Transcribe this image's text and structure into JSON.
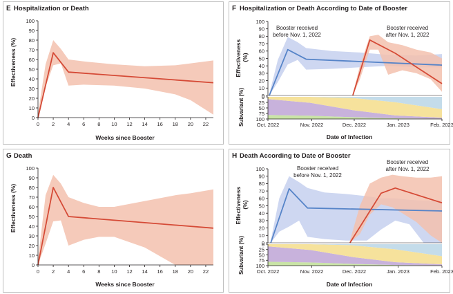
{
  "colors": {
    "frame": "#bfbfbf",
    "axis": "#231f20",
    "red_line": "#d54a36",
    "red_band": "#f3c1ae",
    "blue_line": "#5684c8",
    "blue_band": "#c5d0ee",
    "sub_purple": "#c8b2dc",
    "sub_green": "#c9e4a6",
    "sub_yellow": "#f6e29c",
    "sub_blue": "#c4dcea"
  },
  "chart_data": [
    {
      "panel": "E",
      "title": "Hospitalization or Death",
      "type": "line",
      "xlabel": "Weeks since Booster",
      "ylabel": "Effectiveness (%)",
      "xlim": [
        0,
        23
      ],
      "ylim": [
        0,
        100
      ],
      "xticks": [
        "0",
        "2",
        "4",
        "6",
        "8",
        "10",
        "12",
        "14",
        "16",
        "18",
        "20",
        "22"
      ],
      "yticks": [
        "0",
        "10",
        "20",
        "30",
        "40",
        "50",
        "60",
        "70",
        "80",
        "90",
        "100"
      ],
      "series": [
        {
          "color": "red",
          "x": [
            0,
            2,
            4,
            23
          ],
          "y": [
            0,
            67,
            47,
            36
          ],
          "band": {
            "x": [
              0,
              1,
              2,
              3,
              4,
              6,
              10,
              14,
              18,
              20,
              23
            ],
            "upper": [
              4,
              55,
              80,
              71,
              60,
              58,
              55,
              53,
              54,
              56,
              59
            ],
            "lower": [
              0,
              32,
              54,
              56,
              33,
              34,
              33,
              30,
              24,
              18,
              3
            ]
          }
        }
      ]
    },
    {
      "panel": "F",
      "title": "Hospitalization or Death According to Date of Booster",
      "type": "line",
      "xlabel": "Date of Infection",
      "ylabel": "Effectiveness (%)",
      "subvariant_label": "Subvariant (%)",
      "xlim": [
        0,
        123
      ],
      "ylim": [
        0,
        100
      ],
      "xticks": [
        "Oct. 2022",
        "Nov. 2022",
        "Dec. 2022",
        "Jan. 2023",
        "Feb. 2023"
      ],
      "xtick_days": [
        0,
        31,
        61,
        92,
        123
      ],
      "yticks": [
        "0",
        "10",
        "20",
        "30",
        "40",
        "50",
        "60",
        "70",
        "80",
        "90",
        "100"
      ],
      "sub_yticks": [
        "0",
        "25",
        "50",
        "75",
        "100"
      ],
      "annotations": [
        {
          "text": [
            "Booster received",
            "before Nov. 1, 2022"
          ],
          "series": "blue"
        },
        {
          "text": [
            "Booster received",
            "after Nov. 1, 2022"
          ],
          "series": "red"
        }
      ],
      "series": [
        {
          "color": "blue",
          "x": [
            1,
            14,
            27,
            123
          ],
          "y": [
            0,
            62,
            49,
            41
          ],
          "band": {
            "x": [
              1,
              7,
              14,
              21,
              27,
              45,
              65,
              85,
              105,
              123
            ],
            "upper": [
              2,
              48,
              79,
              72,
              64,
              60,
              58,
              55,
              54,
              56
            ],
            "lower": [
              0,
              18,
              42,
              48,
              35,
              36,
              38,
              40,
              38,
              38
            ]
          }
        },
        {
          "color": "red",
          "x": [
            60,
            72,
            90,
            123
          ],
          "y": [
            0,
            75,
            57,
            16
          ],
          "band": {
            "x": [
              60,
              65,
              72,
              78,
              85,
              95,
              105,
              115,
              123
            ],
            "upper": [
              2,
              40,
              80,
              82,
              72,
              68,
              62,
              58,
              50
            ],
            "lower": [
              0,
              22,
              62,
              62,
              28,
              34,
              30,
              22,
              5
            ]
          }
        }
      ],
      "subvariants": {
        "x": [
          0,
          30,
          60,
          90,
          123
        ],
        "layers": [
          {
            "color": "green",
            "values": [
              18,
              15,
              8,
              3,
              1
            ]
          },
          {
            "color": "purple",
            "values": [
              72,
              58,
              32,
              13,
              5
            ]
          },
          {
            "color": "yellow",
            "values": [
              10,
              27,
              55,
              60,
              38
            ]
          },
          {
            "color": "blue",
            "values": [
              0,
              0,
              5,
              24,
              56
            ]
          }
        ]
      }
    },
    {
      "panel": "G",
      "title": "Death",
      "type": "line",
      "xlabel": "Weeks since Booster",
      "ylabel": "Effectiveness (%)",
      "xlim": [
        0,
        23
      ],
      "ylim": [
        0,
        100
      ],
      "xticks": [
        "0",
        "2",
        "4",
        "6",
        "8",
        "10",
        "12",
        "14",
        "16",
        "18",
        "20",
        "22"
      ],
      "yticks": [
        "0",
        "10",
        "20",
        "30",
        "40",
        "50",
        "60",
        "70",
        "80",
        "90",
        "100"
      ],
      "series": [
        {
          "color": "red",
          "x": [
            0,
            2,
            4,
            23
          ],
          "y": [
            0,
            80,
            50,
            38
          ],
          "band": {
            "x": [
              0,
              1,
              2,
              3,
              4,
              6,
              8,
              10,
              14,
              18,
              20,
              23
            ],
            "upper": [
              5,
              72,
              93,
              84,
              70,
              64,
              60,
              60,
              66,
              72,
              74,
              78
            ],
            "lower": [
              0,
              22,
              45,
              46,
              20,
              26,
              29,
              29,
              18,
              0,
              0,
              0
            ]
          }
        }
      ]
    },
    {
      "panel": "H",
      "title": "Death According to Date of Booster",
      "type": "line",
      "xlabel": "Date of Infection",
      "ylabel": "Effectiveness (%)",
      "subvariant_label": "Subvariant (%)",
      "xlim": [
        0,
        123
      ],
      "ylim": [
        0,
        100
      ],
      "xticks": [
        "Oct. 2022",
        "Nov. 2022",
        "Dec. 2022",
        "Jan. 2023",
        "Feb. 2023"
      ],
      "xtick_days": [
        0,
        31,
        61,
        92,
        123
      ],
      "yticks": [
        "0",
        "10",
        "20",
        "30",
        "40",
        "50",
        "60",
        "70",
        "80",
        "90",
        "100"
      ],
      "sub_yticks": [
        "0",
        "25",
        "50",
        "75",
        "100"
      ],
      "annotations": [
        {
          "text": [
            "Booster received",
            "before Nov. 1, 2022"
          ],
          "series": "blue"
        },
        {
          "text": [
            "Booster received",
            "after Nov. 1, 2022"
          ],
          "series": "red"
        }
      ],
      "series": [
        {
          "color": "blue",
          "x": [
            2,
            15,
            28,
            123
          ],
          "y": [
            0,
            73,
            47,
            43
          ],
          "band": {
            "x": [
              2,
              8,
              15,
              22,
              28,
              40,
              55,
              70,
              80,
              90,
              100,
              110,
              123
            ],
            "upper": [
              3,
              60,
              90,
              82,
              74,
              68,
              66,
              63,
              60,
              60,
              58,
              57,
              57
            ],
            "lower": [
              0,
              15,
              22,
              30,
              8,
              5,
              3,
              3,
              18,
              30,
              25,
              0,
              0
            ]
          }
        },
        {
          "color": "red",
          "x": [
            58,
            80,
            90,
            123
          ],
          "y": [
            0,
            67,
            74,
            54
          ],
          "band": {
            "x": [
              58,
              65,
              72,
              80,
              88,
              95,
              105,
              115,
              123
            ],
            "upper": [
              3,
              50,
              80,
              88,
              92,
              90,
              88,
              88,
              90
            ],
            "lower": [
              0,
              12,
              38,
              52,
              48,
              40,
              28,
              10,
              0
            ]
          }
        }
      ],
      "subvariants": {
        "x": [
          0,
          30,
          60,
          90,
          123
        ],
        "layers": [
          {
            "color": "green",
            "values": [
              18,
              15,
              8,
              3,
              1
            ]
          },
          {
            "color": "purple",
            "values": [
              72,
              58,
              32,
              13,
              5
            ]
          },
          {
            "color": "yellow",
            "values": [
              10,
              27,
              55,
              60,
              38
            ]
          },
          {
            "color": "blue",
            "values": [
              0,
              0,
              5,
              24,
              56
            ]
          }
        ]
      }
    }
  ]
}
